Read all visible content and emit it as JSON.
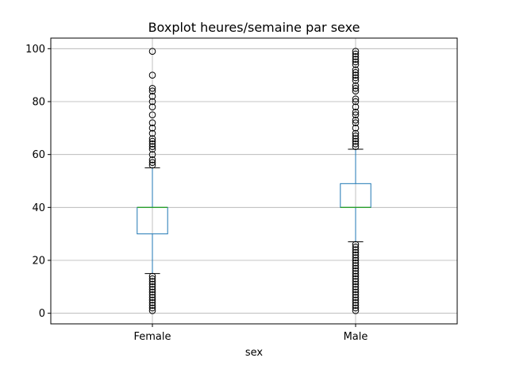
{
  "chart_data": {
    "type": "boxplot",
    "title": "Boxplot heures/semaine par sexe",
    "xlabel": "sex",
    "ylabel": "",
    "categories": [
      "Female",
      "Male"
    ],
    "ylim": [
      -4,
      104
    ],
    "yticks": [
      0,
      20,
      40,
      60,
      80,
      100
    ],
    "grid": true,
    "boxes": [
      {
        "category": "Female",
        "whisker_low": 15,
        "q1": 30,
        "median": 40,
        "q3": 40,
        "whisker_high": 55,
        "outliers": [
          1,
          2,
          3,
          4,
          5,
          6,
          7,
          8,
          9,
          10,
          11,
          12,
          13,
          14,
          56,
          57,
          58,
          60,
          62,
          63,
          64,
          65,
          66,
          68,
          70,
          72,
          75,
          78,
          80,
          82,
          84,
          85,
          90,
          99
        ]
      },
      {
        "category": "Male",
        "whisker_low": 27,
        "q1": 40,
        "median": 40,
        "q3": 49,
        "whisker_high": 62,
        "outliers": [
          1,
          2,
          3,
          4,
          5,
          6,
          7,
          8,
          9,
          10,
          11,
          12,
          13,
          14,
          15,
          16,
          17,
          18,
          19,
          20,
          21,
          22,
          23,
          24,
          25,
          26,
          63,
          64,
          65,
          66,
          67,
          68,
          70,
          72,
          73,
          75,
          76,
          78,
          80,
          81,
          84,
          85,
          86,
          88,
          89,
          90,
          91,
          92,
          94,
          95,
          96,
          97,
          98,
          99
        ]
      }
    ],
    "colors": {
      "box": "#1f77b4",
      "median": "#2ca02c",
      "whisker_cap": "#000000",
      "outlier": "#000000",
      "grid": "#b0b0b0",
      "axes": "#000000"
    }
  }
}
